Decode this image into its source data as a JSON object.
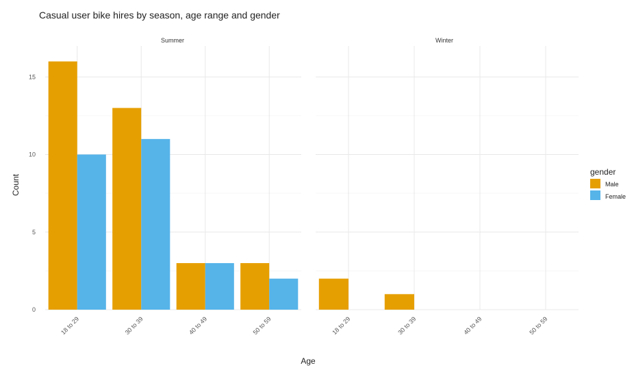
{
  "chart_data": {
    "type": "bar",
    "title": "Casual user bike hires by season, age range and gender",
    "xlabel": "Age",
    "ylabel": "Count",
    "ylim": [
      0,
      17
    ],
    "yticks": [
      0,
      5,
      10,
      15
    ],
    "categories": [
      "18 to 29",
      "30 to 39",
      "40 to 49",
      "50 to 59"
    ],
    "grid": true,
    "legend": {
      "title": "gender",
      "placement": "right",
      "entries": [
        {
          "name": "Male",
          "color": "#E69F00"
        },
        {
          "name": "Female",
          "color": "#56B4E9"
        }
      ]
    },
    "facets": [
      {
        "label": "Summer",
        "series": [
          {
            "name": "Male",
            "values": [
              16,
              13,
              3,
              3
            ]
          },
          {
            "name": "Female",
            "values": [
              10,
              11,
              3,
              2
            ]
          }
        ]
      },
      {
        "label": "Winter",
        "series": [
          {
            "name": "Male",
            "values": [
              2,
              1,
              0,
              0
            ]
          },
          {
            "name": "Female",
            "values": [
              0,
              0,
              0,
              0
            ]
          }
        ]
      }
    ]
  }
}
